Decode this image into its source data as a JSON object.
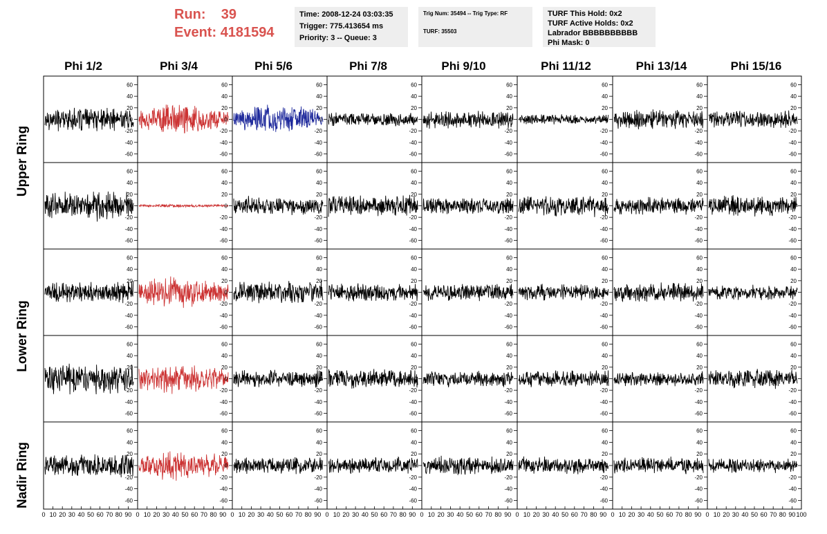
{
  "header": {
    "run_label": "Run:",
    "run_value": "39",
    "event_label": "Event:",
    "event_value": "4181594"
  },
  "info_time": {
    "time": "Time: 2008-12-24 03:03:35",
    "trigger": "Trigger: 775.413654 ms",
    "priority": "Priority: 3 -- Queue: 3"
  },
  "info_trig": {
    "trig": "Trig Num: 35494 -- Trig Type: RF",
    "turf": "TURF: 35503"
  },
  "info_turf": {
    "hold": "TURF This Hold: 0x2",
    "active": "TURF Active Holds: 0x2",
    "labrador": "Labrador BBBBBBBBBB",
    "phimask": "Phi Mask: 0"
  },
  "colors": {
    "black": "#000000",
    "red": "#cc3333",
    "blue": "#1f2a9c",
    "title_red": "#d9534f"
  },
  "chart_data": {
    "type": "line",
    "columns": [
      "Phi 1/2",
      "Phi 3/4",
      "Phi 5/6",
      "Phi 7/8",
      "Phi 9/10",
      "Phi 11/12",
      "Phi 13/14",
      "Phi 15/16"
    ],
    "rows": [
      "Upper Ring",
      "Lower Ring",
      "Nadir Ring"
    ],
    "xlim": [
      0,
      100
    ],
    "ylim": [
      -75,
      75
    ],
    "yticks": [
      -60,
      -40,
      -20,
      0,
      20,
      40,
      60
    ],
    "xticks": [
      0,
      10,
      20,
      30,
      40,
      50,
      60,
      70,
      80,
      90,
      100
    ],
    "grid": false,
    "panels": [
      {
        "row": 0,
        "col": 0,
        "color": "black",
        "amp": 22
      },
      {
        "row": 0,
        "col": 1,
        "color": "red",
        "amp": 30
      },
      {
        "row": 0,
        "col": 2,
        "color": "blue",
        "amp": 28
      },
      {
        "row": 0,
        "col": 3,
        "color": "black",
        "amp": 13
      },
      {
        "row": 0,
        "col": 4,
        "color": "black",
        "amp": 18
      },
      {
        "row": 0,
        "col": 5,
        "color": "black",
        "amp": 10
      },
      {
        "row": 0,
        "col": 6,
        "color": "black",
        "amp": 18
      },
      {
        "row": 0,
        "col": 7,
        "color": "black",
        "amp": 17
      },
      {
        "row": 1,
        "col": 0,
        "color": "black",
        "amp": 28
      },
      {
        "row": 1,
        "col": 1,
        "color": "red",
        "amp": 3
      },
      {
        "row": 1,
        "col": 2,
        "color": "black",
        "amp": 18
      },
      {
        "row": 1,
        "col": 3,
        "color": "black",
        "amp": 20
      },
      {
        "row": 1,
        "col": 4,
        "color": "black",
        "amp": 16
      },
      {
        "row": 1,
        "col": 5,
        "color": "black",
        "amp": 20
      },
      {
        "row": 1,
        "col": 6,
        "color": "black",
        "amp": 17
      },
      {
        "row": 1,
        "col": 7,
        "color": "black",
        "amp": 20
      },
      {
        "row": 2,
        "col": 0,
        "color": "black",
        "amp": 20
      },
      {
        "row": 2,
        "col": 1,
        "color": "red",
        "amp": 30
      },
      {
        "row": 2,
        "col": 2,
        "color": "black",
        "amp": 22
      },
      {
        "row": 2,
        "col": 3,
        "color": "black",
        "amp": 18
      },
      {
        "row": 2,
        "col": 4,
        "color": "black",
        "amp": 16
      },
      {
        "row": 2,
        "col": 5,
        "color": "black",
        "amp": 16
      },
      {
        "row": 2,
        "col": 6,
        "color": "black",
        "amp": 18
      },
      {
        "row": 2,
        "col": 7,
        "color": "black",
        "amp": 14
      },
      {
        "row": 3,
        "col": 0,
        "color": "black",
        "amp": 30
      },
      {
        "row": 3,
        "col": 1,
        "color": "red",
        "amp": 28
      },
      {
        "row": 3,
        "col": 2,
        "color": "black",
        "amp": 16
      },
      {
        "row": 3,
        "col": 3,
        "color": "black",
        "amp": 18
      },
      {
        "row": 3,
        "col": 4,
        "color": "black",
        "amp": 16
      },
      {
        "row": 3,
        "col": 5,
        "color": "black",
        "amp": 16
      },
      {
        "row": 3,
        "col": 6,
        "color": "black",
        "amp": 14
      },
      {
        "row": 3,
        "col": 7,
        "color": "black",
        "amp": 18
      },
      {
        "row": 4,
        "col": 0,
        "color": "black",
        "amp": 22
      },
      {
        "row": 4,
        "col": 1,
        "color": "red",
        "amp": 28
      },
      {
        "row": 4,
        "col": 2,
        "color": "black",
        "amp": 16
      },
      {
        "row": 4,
        "col": 3,
        "color": "black",
        "amp": 16
      },
      {
        "row": 4,
        "col": 4,
        "color": "black",
        "amp": 18
      },
      {
        "row": 4,
        "col": 5,
        "color": "black",
        "amp": 16
      },
      {
        "row": 4,
        "col": 6,
        "color": "black",
        "amp": 16
      },
      {
        "row": 4,
        "col": 7,
        "color": "black",
        "amp": 14
      }
    ]
  }
}
